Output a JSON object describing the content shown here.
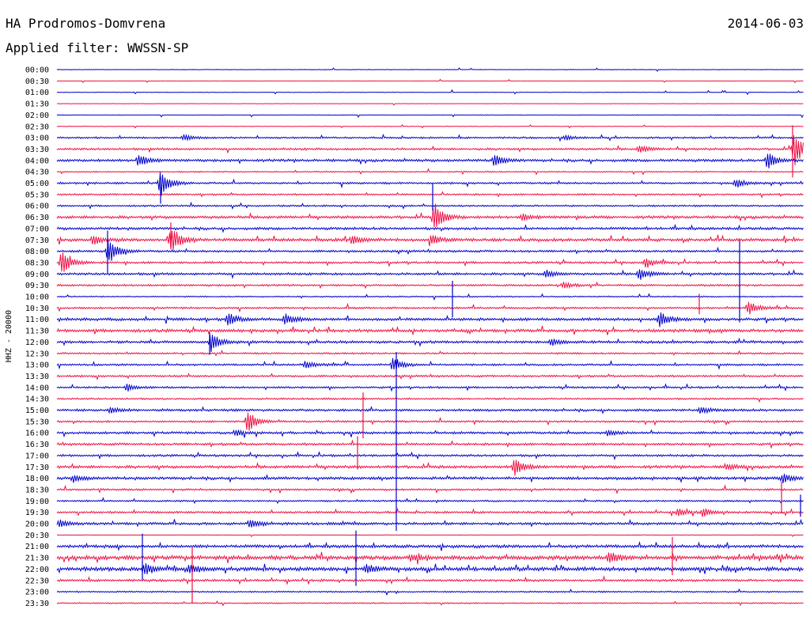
{
  "header": {
    "station": "HA Prodromos-Domvrena",
    "date": "2014-06-03",
    "filter_label": "Applied filter:",
    "filter_value": "WWSSN-SP"
  },
  "chart_data": {
    "type": "line",
    "title": "HA Prodromos-Domvrena",
    "ylabel": "HHZ - 20000",
    "row_labels": [
      "00:00",
      "00:30",
      "01:00",
      "01:30",
      "02:00",
      "02:30",
      "03:00",
      "03:30",
      "04:00",
      "04:30",
      "05:00",
      "05:30",
      "06:00",
      "06:30",
      "07:00",
      "07:30",
      "08:00",
      "08:30",
      "09:00",
      "09:30",
      "10:00",
      "10:30",
      "11:00",
      "11:30",
      "12:00",
      "12:30",
      "13:00",
      "13:30",
      "14:00",
      "14:30",
      "15:00",
      "15:30",
      "16:00",
      "16:30",
      "17:00",
      "17:30",
      "18:00",
      "18:30",
      "19:00",
      "19:30",
      "20:00",
      "20:30",
      "21:00",
      "21:30",
      "22:00",
      "22:30",
      "23:00",
      "23:30"
    ],
    "series_colors": [
      "#0000cc",
      "#ee1144"
    ],
    "noise_level": [
      0.3,
      0.2,
      0.3,
      0.2,
      0.3,
      0.3,
      0.8,
      1.0,
      1.2,
      0.6,
      0.9,
      0.8,
      0.8,
      1.3,
      1.2,
      1.4,
      1.0,
      1.0,
      1.1,
      0.9,
      0.6,
      0.9,
      1.3,
      1.4,
      1.2,
      0.8,
      0.9,
      0.9,
      0.9,
      0.8,
      1.1,
      0.9,
      1.1,
      1.1,
      1.0,
      1.3,
      1.3,
      0.9,
      0.8,
      1.0,
      1.2,
      0.3,
      1.4,
      1.9,
      1.8,
      1.1,
      0.7,
      0.6
    ],
    "events": [
      {
        "row": 6,
        "x": 232,
        "amp": 4
      },
      {
        "row": 6,
        "x": 715,
        "amp": 3
      },
      {
        "row": 7,
        "x": 808,
        "amp": 5
      },
      {
        "row": 7,
        "x": 1004,
        "amp": 22
      },
      {
        "row": 8,
        "x": 175,
        "amp": 8
      },
      {
        "row": 8,
        "x": 625,
        "amp": 8
      },
      {
        "row": 8,
        "x": 970,
        "amp": 12
      },
      {
        "row": 10,
        "x": 203,
        "amp": 17
      },
      {
        "row": 10,
        "x": 930,
        "amp": 6
      },
      {
        "row": 13,
        "x": 549,
        "amp": 18
      },
      {
        "row": 13,
        "x": 660,
        "amp": 4
      },
      {
        "row": 15,
        "x": 216,
        "amp": 18
      },
      {
        "row": 15,
        "x": 445,
        "amp": 6
      },
      {
        "row": 15,
        "x": 545,
        "amp": 7
      },
      {
        "row": 15,
        "x": 118,
        "amp": 5
      },
      {
        "row": 16,
        "x": 137,
        "amp": 18
      },
      {
        "row": 17,
        "x": 78,
        "amp": 16
      },
      {
        "row": 17,
        "x": 816,
        "amp": 6
      },
      {
        "row": 18,
        "x": 808,
        "amp": 8
      },
      {
        "row": 18,
        "x": 690,
        "amp": 5
      },
      {
        "row": 19,
        "x": 712,
        "amp": 4
      },
      {
        "row": 21,
        "x": 946,
        "amp": 9
      },
      {
        "row": 22,
        "x": 288,
        "amp": 9
      },
      {
        "row": 22,
        "x": 360,
        "amp": 7
      },
      {
        "row": 22,
        "x": 834,
        "amp": 10
      },
      {
        "row": 24,
        "x": 267,
        "amp": 12
      },
      {
        "row": 24,
        "x": 697,
        "amp": 4
      },
      {
        "row": 26,
        "x": 497,
        "amp": 10
      },
      {
        "row": 26,
        "x": 386,
        "amp": 5
      },
      {
        "row": 28,
        "x": 160,
        "amp": 4
      },
      {
        "row": 30,
        "x": 140,
        "amp": 4
      },
      {
        "row": 30,
        "x": 885,
        "amp": 4
      },
      {
        "row": 31,
        "x": 313,
        "amp": 14
      },
      {
        "row": 32,
        "x": 298,
        "amp": 4
      },
      {
        "row": 32,
        "x": 768,
        "amp": 4
      },
      {
        "row": 35,
        "x": 650,
        "amp": 12
      },
      {
        "row": 35,
        "x": 918,
        "amp": 4
      },
      {
        "row": 36,
        "x": 990,
        "amp": 6
      },
      {
        "row": 36,
        "x": 93,
        "amp": 4
      },
      {
        "row": 39,
        "x": 857,
        "amp": 5
      },
      {
        "row": 39,
        "x": 888,
        "amp": 5
      },
      {
        "row": 40,
        "x": 316,
        "amp": 6
      },
      {
        "row": 40,
        "x": 75,
        "amp": 5
      },
      {
        "row": 43,
        "x": 770,
        "amp": 8
      },
      {
        "row": 43,
        "x": 520,
        "amp": 4
      },
      {
        "row": 44,
        "x": 183,
        "amp": 8
      },
      {
        "row": 44,
        "x": 240,
        "amp": 6
      },
      {
        "row": 44,
        "x": 463,
        "amp": 6
      }
    ],
    "spikes": [
      {
        "row": 12,
        "x": 547,
        "up": 28,
        "down": 6
      },
      {
        "row": 10,
        "x": 203,
        "up": 8,
        "down": 26
      },
      {
        "row": 15,
        "x": 216,
        "up": 22,
        "down": 12
      },
      {
        "row": 16,
        "x": 136,
        "up": 26,
        "down": 28
      },
      {
        "row": 7,
        "x": 1002,
        "up": 30,
        "down": 36
      },
      {
        "row": 20,
        "x": 572,
        "up": 20,
        "down": 26
      },
      {
        "row": 16,
        "x": 935,
        "up": 14,
        "down": 90
      },
      {
        "row": 26,
        "x": 501,
        "up": 16,
        "down": 210
      },
      {
        "row": 29,
        "x": 459,
        "up": 8,
        "down": 50
      },
      {
        "row": 33,
        "x": 452,
        "up": 10,
        "down": 32
      },
      {
        "row": 37,
        "x": 988,
        "up": 10,
        "down": 30
      },
      {
        "row": 38,
        "x": 1012,
        "up": 8,
        "down": 20
      },
      {
        "row": 42,
        "x": 180,
        "up": 16,
        "down": 42
      },
      {
        "row": 43,
        "x": 243,
        "up": 14,
        "down": 58
      },
      {
        "row": 42,
        "x": 450,
        "up": 20,
        "down": 50
      },
      {
        "row": 43,
        "x": 850,
        "up": 26,
        "down": 22
      },
      {
        "row": 24,
        "x": 265,
        "up": 12,
        "down": 16
      },
      {
        "row": 21,
        "x": 884,
        "up": 18,
        "down": 8
      }
    ]
  }
}
